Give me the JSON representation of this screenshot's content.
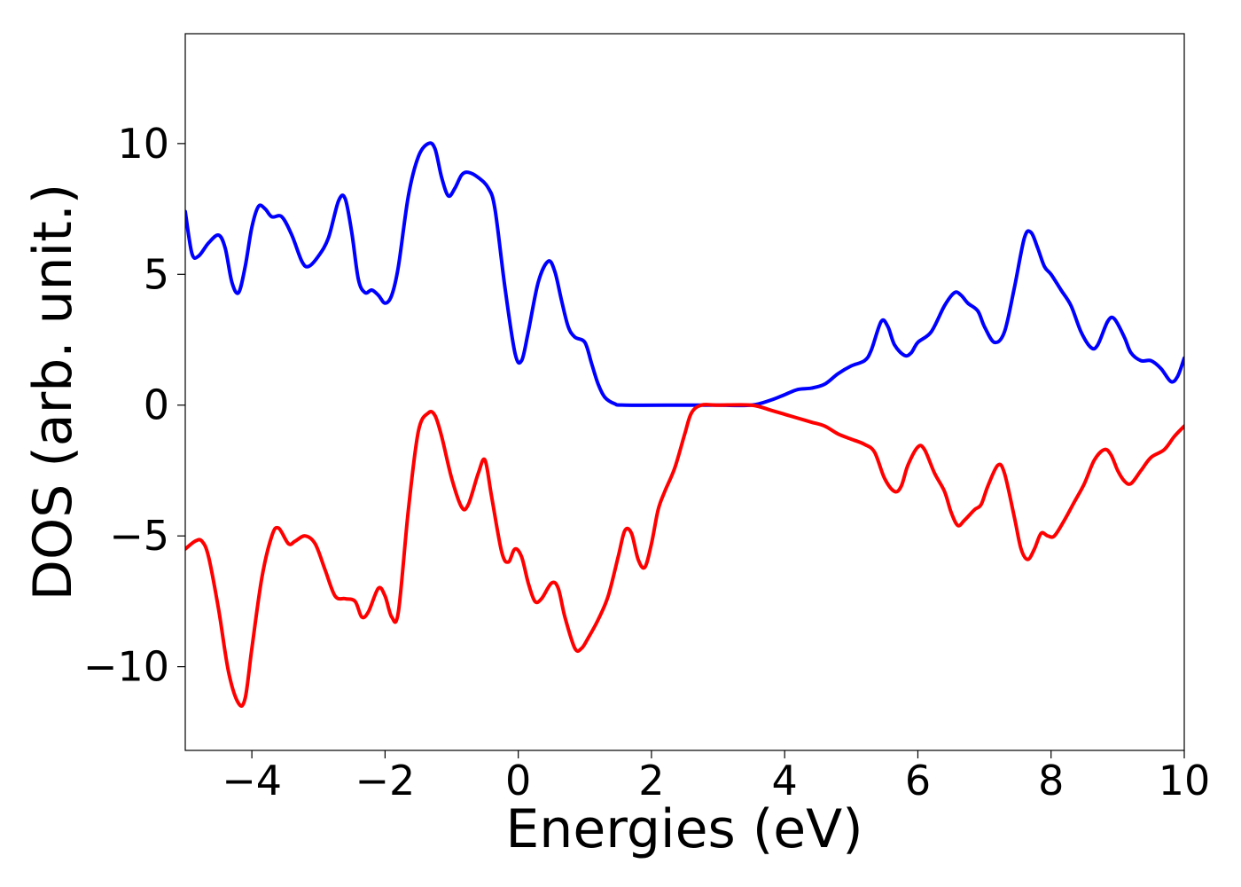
{
  "chart_data": {
    "type": "line",
    "title": "",
    "xlabel": "Energies (eV)",
    "ylabel": "DOS (arb. unit.)",
    "xlim": [
      -5,
      10
    ],
    "ylim": [
      -13.2,
      14.2
    ],
    "xticks": [
      -4,
      -2,
      0,
      2,
      4,
      6,
      8,
      10
    ],
    "xtick_labels": [
      "−4",
      "−2",
      "0",
      "2",
      "4",
      "6",
      "8",
      "10"
    ],
    "yticks": [
      10,
      5,
      0,
      -5,
      -10
    ],
    "ytick_labels": [
      "10",
      "5",
      "0",
      "−5",
      "−10"
    ],
    "grid": false,
    "legend": "none",
    "series": [
      {
        "color": "#0000ff",
        "points": [
          [
            -5.0,
            7.4
          ],
          [
            -4.9,
            5.8
          ],
          [
            -4.8,
            5.7
          ],
          [
            -4.65,
            6.2
          ],
          [
            -4.5,
            6.5
          ],
          [
            -4.4,
            6.0
          ],
          [
            -4.3,
            4.7
          ],
          [
            -4.2,
            4.3
          ],
          [
            -4.1,
            5.3
          ],
          [
            -4.0,
            6.8
          ],
          [
            -3.9,
            7.6
          ],
          [
            -3.8,
            7.5
          ],
          [
            -3.7,
            7.2
          ],
          [
            -3.55,
            7.2
          ],
          [
            -3.4,
            6.5
          ],
          [
            -3.25,
            5.5
          ],
          [
            -3.15,
            5.3
          ],
          [
            -3.0,
            5.7
          ],
          [
            -2.85,
            6.4
          ],
          [
            -2.7,
            7.8
          ],
          [
            -2.6,
            7.9
          ],
          [
            -2.5,
            6.6
          ],
          [
            -2.4,
            4.8
          ],
          [
            -2.3,
            4.3
          ],
          [
            -2.2,
            4.4
          ],
          [
            -2.1,
            4.2
          ],
          [
            -2.0,
            3.9
          ],
          [
            -1.9,
            4.2
          ],
          [
            -1.8,
            5.3
          ],
          [
            -1.65,
            8.0
          ],
          [
            -1.5,
            9.5
          ],
          [
            -1.35,
            10.0
          ],
          [
            -1.25,
            9.8
          ],
          [
            -1.15,
            8.7
          ],
          [
            -1.05,
            8.0
          ],
          [
            -0.95,
            8.3
          ],
          [
            -0.85,
            8.8
          ],
          [
            -0.75,
            8.9
          ],
          [
            -0.6,
            8.7
          ],
          [
            -0.45,
            8.3
          ],
          [
            -0.35,
            7.5
          ],
          [
            -0.2,
            4.5
          ],
          [
            -0.05,
            2.0
          ],
          [
            0.05,
            1.7
          ],
          [
            0.15,
            2.8
          ],
          [
            0.3,
            4.7
          ],
          [
            0.45,
            5.5
          ],
          [
            0.55,
            5.1
          ],
          [
            0.65,
            4.0
          ],
          [
            0.75,
            3.0
          ],
          [
            0.85,
            2.6
          ],
          [
            1.0,
            2.4
          ],
          [
            1.1,
            1.6
          ],
          [
            1.2,
            0.8
          ],
          [
            1.3,
            0.3
          ],
          [
            1.45,
            0.05
          ],
          [
            1.6,
            0.0
          ],
          [
            2.5,
            0.0
          ],
          [
            3.0,
            0.0
          ],
          [
            3.5,
            0.0
          ],
          [
            3.8,
            0.2
          ],
          [
            4.0,
            0.4
          ],
          [
            4.2,
            0.6
          ],
          [
            4.4,
            0.65
          ],
          [
            4.6,
            0.8
          ],
          [
            4.8,
            1.2
          ],
          [
            5.0,
            1.5
          ],
          [
            5.2,
            1.7
          ],
          [
            5.3,
            2.1
          ],
          [
            5.45,
            3.2
          ],
          [
            5.55,
            3.0
          ],
          [
            5.65,
            2.3
          ],
          [
            5.8,
            1.9
          ],
          [
            5.9,
            2.0
          ],
          [
            6.0,
            2.4
          ],
          [
            6.2,
            2.8
          ],
          [
            6.4,
            3.8
          ],
          [
            6.55,
            4.3
          ],
          [
            6.65,
            4.2
          ],
          [
            6.75,
            3.9
          ],
          [
            6.9,
            3.6
          ],
          [
            7.0,
            3.0
          ],
          [
            7.15,
            2.4
          ],
          [
            7.3,
            2.8
          ],
          [
            7.45,
            4.5
          ],
          [
            7.6,
            6.4
          ],
          [
            7.7,
            6.6
          ],
          [
            7.8,
            6.0
          ],
          [
            7.9,
            5.3
          ],
          [
            8.0,
            5.0
          ],
          [
            8.15,
            4.4
          ],
          [
            8.3,
            3.8
          ],
          [
            8.45,
            2.8
          ],
          [
            8.6,
            2.2
          ],
          [
            8.7,
            2.3
          ],
          [
            8.85,
            3.2
          ],
          [
            8.95,
            3.3
          ],
          [
            9.1,
            2.6
          ],
          [
            9.2,
            2.0
          ],
          [
            9.35,
            1.7
          ],
          [
            9.5,
            1.7
          ],
          [
            9.65,
            1.4
          ],
          [
            9.8,
            0.9
          ],
          [
            9.9,
            1.1
          ],
          [
            10.0,
            1.8
          ]
        ]
      },
      {
        "color": "#ff0000",
        "points": [
          [
            -5.0,
            -5.5
          ],
          [
            -4.85,
            -5.2
          ],
          [
            -4.75,
            -5.2
          ],
          [
            -4.65,
            -5.8
          ],
          [
            -4.5,
            -7.8
          ],
          [
            -4.35,
            -10.2
          ],
          [
            -4.2,
            -11.4
          ],
          [
            -4.1,
            -11.2
          ],
          [
            -4.0,
            -9.3
          ],
          [
            -3.85,
            -6.6
          ],
          [
            -3.7,
            -5.0
          ],
          [
            -3.6,
            -4.7
          ],
          [
            -3.45,
            -5.3
          ],
          [
            -3.35,
            -5.2
          ],
          [
            -3.2,
            -5.0
          ],
          [
            -3.05,
            -5.3
          ],
          [
            -2.9,
            -6.3
          ],
          [
            -2.75,
            -7.3
          ],
          [
            -2.6,
            -7.4
          ],
          [
            -2.45,
            -7.5
          ],
          [
            -2.35,
            -8.1
          ],
          [
            -2.25,
            -7.9
          ],
          [
            -2.1,
            -7.0
          ],
          [
            -2.0,
            -7.3
          ],
          [
            -1.9,
            -8.1
          ],
          [
            -1.8,
            -7.9
          ],
          [
            -1.65,
            -4.0
          ],
          [
            -1.5,
            -1.0
          ],
          [
            -1.35,
            -0.3
          ],
          [
            -1.25,
            -0.4
          ],
          [
            -1.15,
            -1.2
          ],
          [
            -1.0,
            -2.8
          ],
          [
            -0.85,
            -3.9
          ],
          [
            -0.75,
            -3.8
          ],
          [
            -0.6,
            -2.6
          ],
          [
            -0.5,
            -2.1
          ],
          [
            -0.4,
            -3.5
          ],
          [
            -0.25,
            -5.6
          ],
          [
            -0.15,
            -6.0
          ],
          [
            -0.05,
            -5.5
          ],
          [
            0.05,
            -5.8
          ],
          [
            0.15,
            -6.8
          ],
          [
            0.25,
            -7.5
          ],
          [
            0.35,
            -7.4
          ],
          [
            0.5,
            -6.8
          ],
          [
            0.6,
            -7.0
          ],
          [
            0.7,
            -8.1
          ],
          [
            0.85,
            -9.3
          ],
          [
            0.95,
            -9.3
          ],
          [
            1.05,
            -8.9
          ],
          [
            1.2,
            -8.2
          ],
          [
            1.35,
            -7.3
          ],
          [
            1.5,
            -5.8
          ],
          [
            1.6,
            -4.8
          ],
          [
            1.7,
            -4.9
          ],
          [
            1.8,
            -5.9
          ],
          [
            1.9,
            -6.2
          ],
          [
            2.0,
            -5.3
          ],
          [
            2.1,
            -4.0
          ],
          [
            2.2,
            -3.3
          ],
          [
            2.35,
            -2.4
          ],
          [
            2.5,
            -1.1
          ],
          [
            2.6,
            -0.3
          ],
          [
            2.75,
            0.0
          ],
          [
            3.0,
            0.0
          ],
          [
            3.5,
            0.0
          ],
          [
            3.8,
            -0.2
          ],
          [
            4.0,
            -0.35
          ],
          [
            4.2,
            -0.5
          ],
          [
            4.4,
            -0.65
          ],
          [
            4.6,
            -0.8
          ],
          [
            4.8,
            -1.1
          ],
          [
            5.0,
            -1.3
          ],
          [
            5.2,
            -1.5
          ],
          [
            5.35,
            -1.8
          ],
          [
            5.5,
            -2.8
          ],
          [
            5.65,
            -3.3
          ],
          [
            5.75,
            -3.1
          ],
          [
            5.85,
            -2.3
          ],
          [
            6.0,
            -1.6
          ],
          [
            6.1,
            -1.7
          ],
          [
            6.25,
            -2.6
          ],
          [
            6.4,
            -3.3
          ],
          [
            6.5,
            -4.1
          ],
          [
            6.6,
            -4.6
          ],
          [
            6.7,
            -4.4
          ],
          [
            6.85,
            -4.0
          ],
          [
            6.95,
            -3.8
          ],
          [
            7.05,
            -3.1
          ],
          [
            7.2,
            -2.3
          ],
          [
            7.3,
            -2.6
          ],
          [
            7.45,
            -4.3
          ],
          [
            7.55,
            -5.5
          ],
          [
            7.65,
            -5.9
          ],
          [
            7.75,
            -5.5
          ],
          [
            7.85,
            -4.9
          ],
          [
            7.95,
            -5.0
          ],
          [
            8.05,
            -5.0
          ],
          [
            8.2,
            -4.4
          ],
          [
            8.35,
            -3.7
          ],
          [
            8.5,
            -3.0
          ],
          [
            8.65,
            -2.1
          ],
          [
            8.8,
            -1.7
          ],
          [
            8.9,
            -1.9
          ],
          [
            9.0,
            -2.5
          ],
          [
            9.1,
            -2.9
          ],
          [
            9.2,
            -3.0
          ],
          [
            9.35,
            -2.5
          ],
          [
            9.5,
            -2.0
          ],
          [
            9.7,
            -1.7
          ],
          [
            9.85,
            -1.2
          ],
          [
            10.0,
            -0.8
          ]
        ]
      }
    ]
  }
}
